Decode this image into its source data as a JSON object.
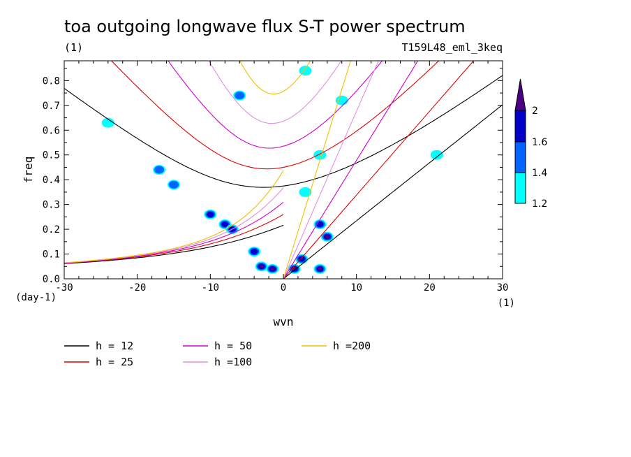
{
  "chart_data": {
    "type": "contour",
    "title": "toa outgoing longwave flux S-T power spectrum",
    "subtitle_left": "(1)",
    "subtitle_right": "T159L48_eml_3keq",
    "xlabel": "wvn",
    "ylabel": "freq",
    "x_unit": "(1)",
    "y_unit": "(day-1)",
    "xlim": [
      -30,
      30
    ],
    "ylim": [
      0,
      0.88
    ],
    "x_ticks": [
      -30,
      -20,
      -10,
      0,
      10,
      20,
      30
    ],
    "x_tick_labels": [
      "-30",
      "-20",
      "-10",
      "0",
      "10",
      "20",
      "30"
    ],
    "y_ticks": [
      0.0,
      0.1,
      0.2,
      0.3,
      0.4,
      0.5,
      0.6,
      0.7,
      0.8
    ],
    "y_tick_labels": [
      "0.0",
      "0.1",
      "0.2",
      "0.3",
      "0.4",
      "0.5",
      "0.6",
      "0.7",
      "0.8"
    ],
    "colorbar": {
      "levels": [
        "1.2",
        "1.4",
        "1.6",
        "2"
      ],
      "colors": [
        "#00ffff",
        "#0064ff",
        "#0000c8",
        "#4b0082"
      ]
    },
    "dispersion_curves": [
      {
        "name": "h = 12",
        "color": "#000000",
        "equivalent_depth": 12
      },
      {
        "name": "h = 25",
        "color": "#e00000",
        "equivalent_depth": 25
      },
      {
        "name": "h = 50",
        "color": "#d000d0",
        "equivalent_depth": 50
      },
      {
        "name": "h =100",
        "color": "#e090e0",
        "equivalent_depth": 100
      },
      {
        "name": "h =200",
        "color": "#f0c000",
        "equivalent_depth": 200
      }
    ],
    "spectral_peaks": [
      {
        "x": -3,
        "y": 0.05,
        "level": 3
      },
      {
        "x": -1.5,
        "y": 0.04,
        "level": 3
      },
      {
        "x": -4,
        "y": 0.11,
        "level": 2
      },
      {
        "x": 1.5,
        "y": 0.04,
        "level": 3
      },
      {
        "x": 2.5,
        "y": 0.08,
        "level": 2
      },
      {
        "x": 5,
        "y": 0.22,
        "level": 2
      },
      {
        "x": 6,
        "y": 0.17,
        "level": 3
      },
      {
        "x": 5,
        "y": 0.04,
        "level": 3
      },
      {
        "x": -10,
        "y": 0.26,
        "level": 2
      },
      {
        "x": -8,
        "y": 0.22,
        "level": 2
      },
      {
        "x": -7,
        "y": 0.2,
        "level": 2
      },
      {
        "x": -15,
        "y": 0.38,
        "level": 1
      },
      {
        "x": -17,
        "y": 0.44,
        "level": 1
      },
      {
        "x": -24,
        "y": 0.63,
        "level": 0
      },
      {
        "x": -6,
        "y": 0.74,
        "level": 1
      },
      {
        "x": 8,
        "y": 0.72,
        "level": 0
      },
      {
        "x": 3,
        "y": 0.84,
        "level": 0
      },
      {
        "x": 21,
        "y": 0.5,
        "level": 0
      },
      {
        "x": 5,
        "y": 0.5,
        "level": 0
      },
      {
        "x": 3,
        "y": 0.35,
        "level": 0
      }
    ]
  }
}
